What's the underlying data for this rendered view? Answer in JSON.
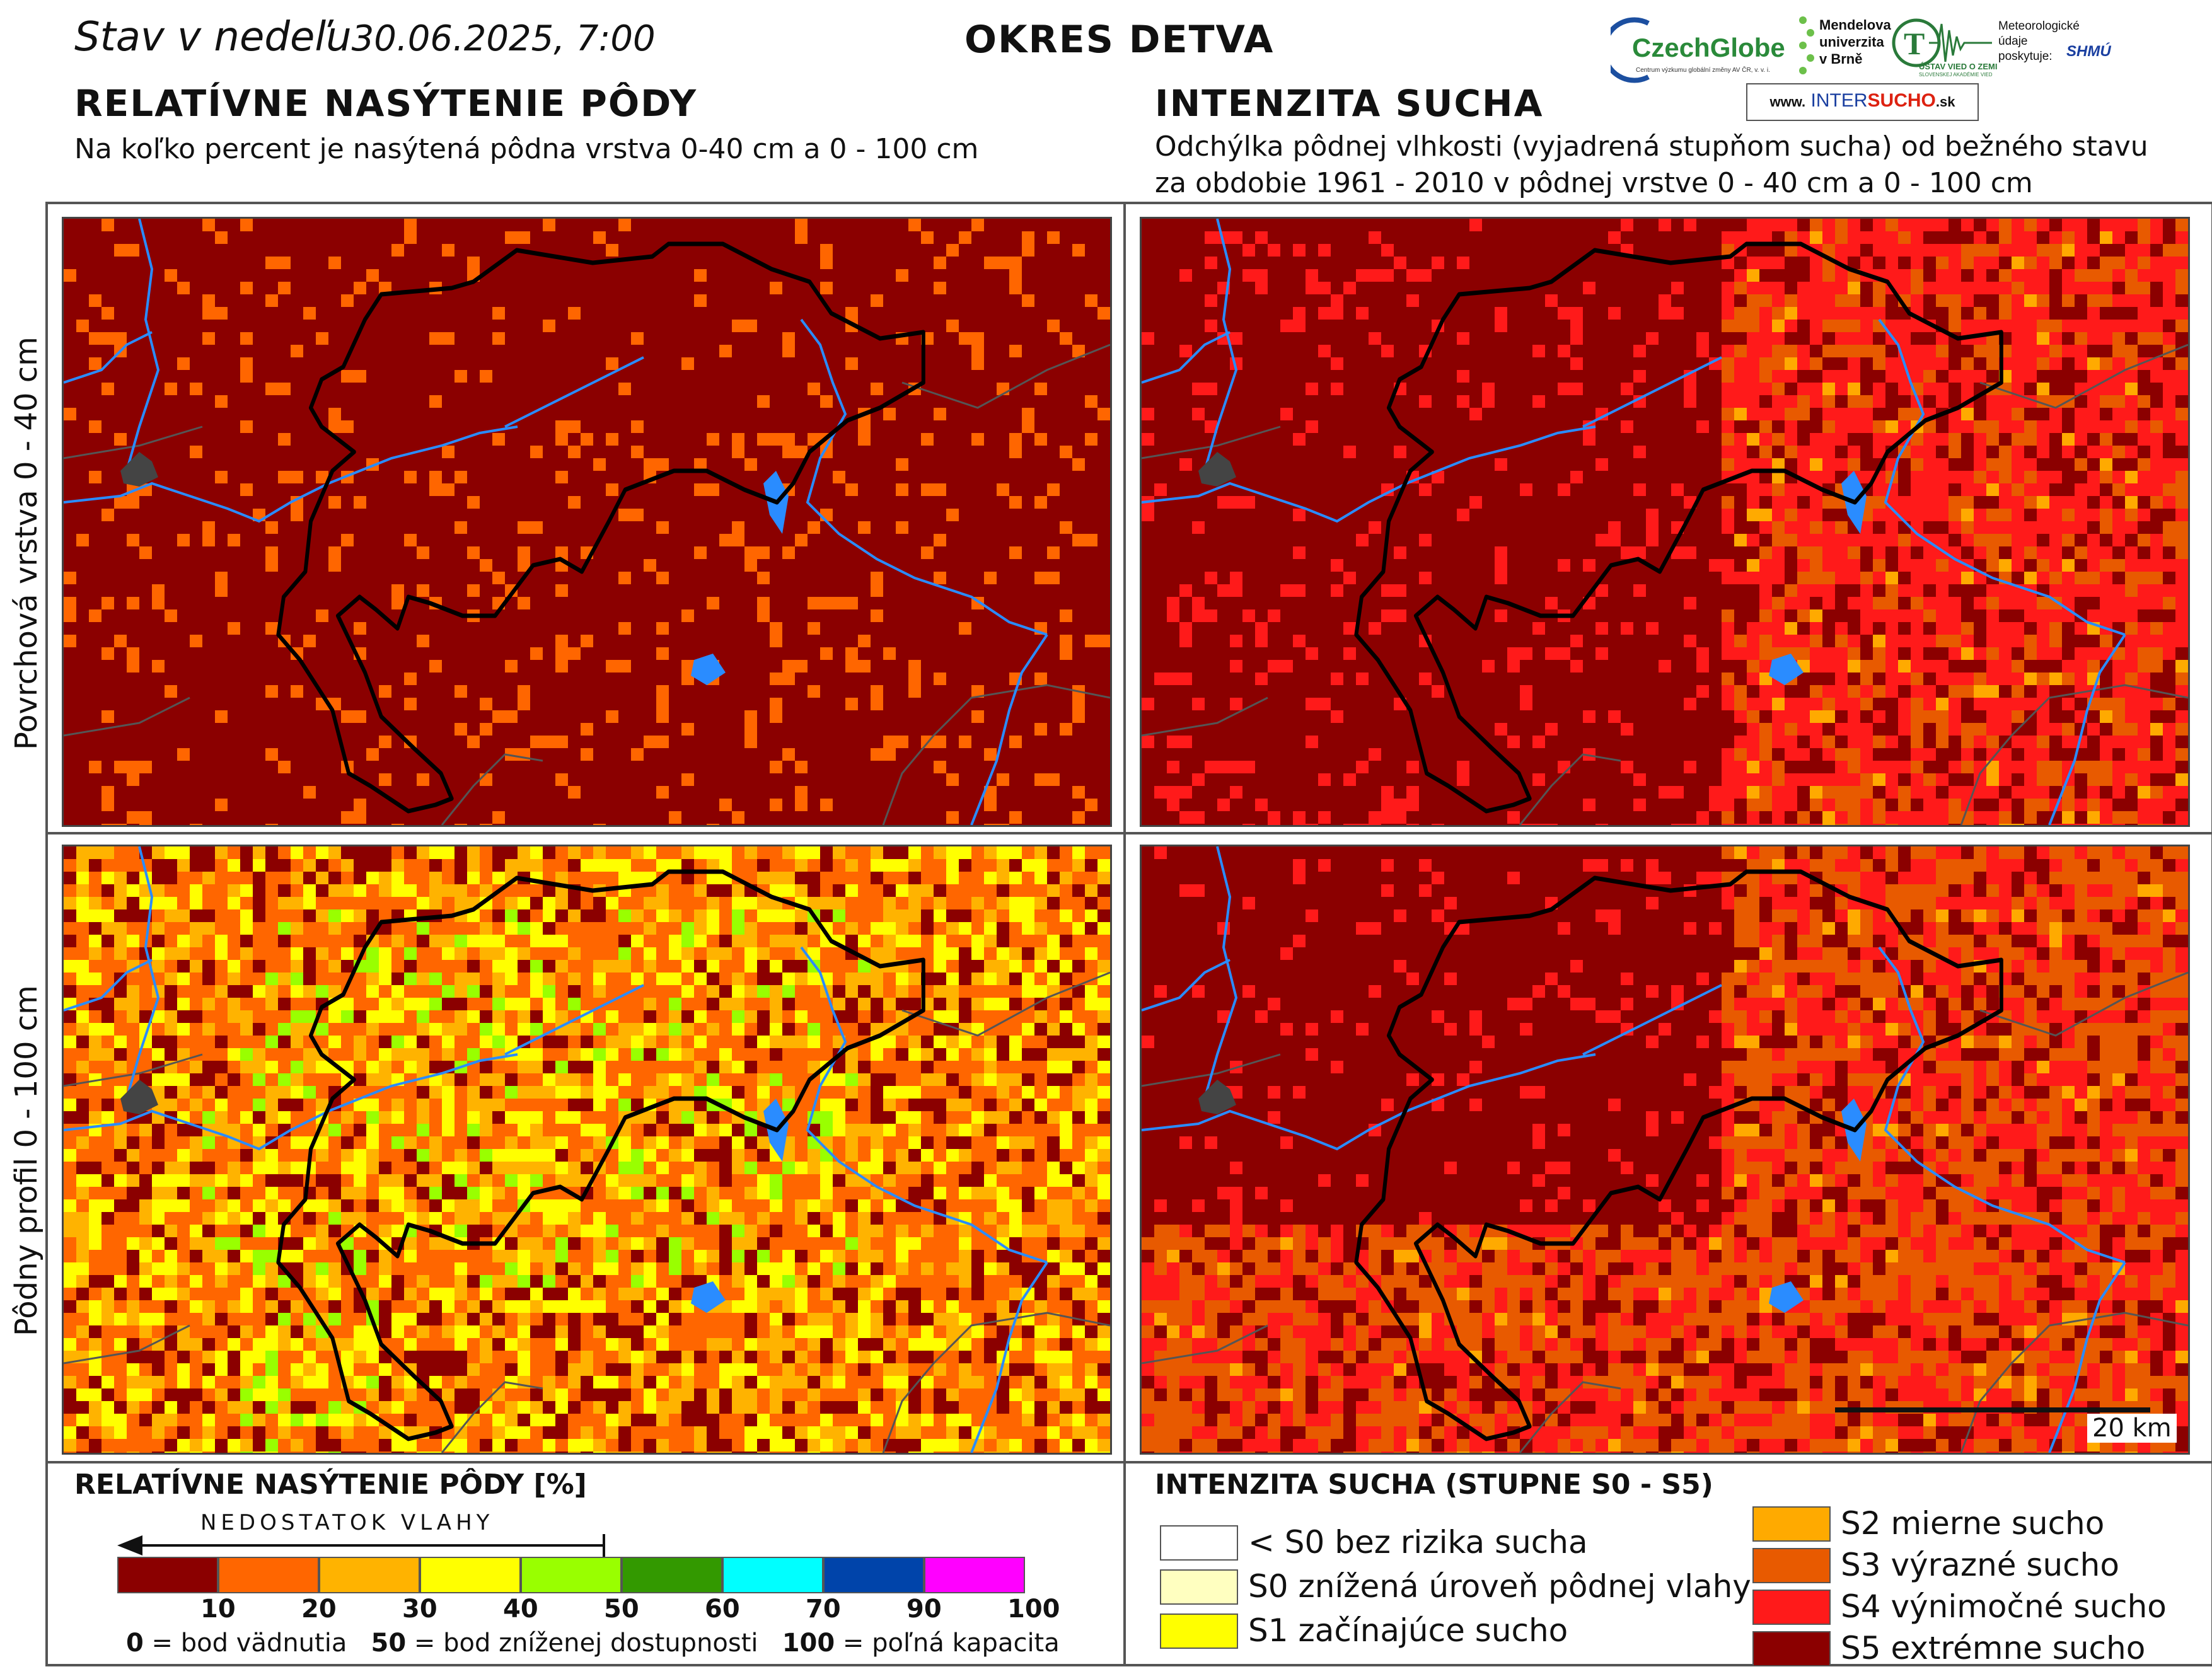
{
  "header": {
    "date_prefix": "Stav v nedeľu",
    "date_value": "30.06.2025, 7:00",
    "district": "OKRES  DETVA"
  },
  "left_section": {
    "title": "RELATÍVNE NASÝTENIE PÔDY",
    "subtitle": "Na koľko percent je nasýtená pôdna vrstva 0-40 cm a 0 - 100 cm"
  },
  "right_section": {
    "title": "INTENZITA SUCHA",
    "subtitle_line1": "Odchýlka pôdnej vlhkosti (vyjadrená stupňom sucha) od bežného stavu",
    "subtitle_line2": "za obdobie 1961 - 2010 v pôdnej vrstve 0 - 40 cm a 0 - 100 cm"
  },
  "logos": {
    "czechglobe": "CzechGlobe",
    "czechglobe_sub": "Centrum výzkumu globální změny AV ČR, v. v. i.",
    "mendelu_line1": "Mendelova",
    "mendelu_line2": "univerzita",
    "mendelu_line3": "v Brně",
    "uvoz_line1": "ÚSTAV VIED O ZEMI",
    "uvoz_line2": "SLOVENSKEJ AKADÉMIE VIED",
    "meteo_line1": "Meteorologické",
    "meteo_line2": "údaje",
    "meteo_line3": "poskytuje:",
    "shmu": "SHMÚ",
    "intersucho_prefix": "www.",
    "intersucho_mid1": "INTER",
    "intersucho_mid2": "SUCHO",
    "intersucho_suffix": ".sk"
  },
  "row_labels": {
    "top": "Povrchová vrstva 0 - 40 cm",
    "bottom": "Pôdny profil 0 - 100 cm"
  },
  "scale_bar": "20 km",
  "legend_saturation": {
    "title": "RELATÍVNE NASÝTENIE PÔDY [%]",
    "arrow_label": "NEDOSTATOK VLAHY",
    "colors": [
      "#8b0000",
      "#ff6600",
      "#ffb300",
      "#ffff00",
      "#99ff00",
      "#339900",
      "#00ffff",
      "#0044aa",
      "#ff00ff"
    ],
    "ticks": [
      "10",
      "20",
      "30",
      "40",
      "50",
      "60",
      "70",
      "90",
      "100"
    ],
    "note_0_num": "0",
    "note_0_text": " = bod vädnutia",
    "note_50_num": "50",
    "note_50_text": " = bod zníženej dostupnosti",
    "note_100_num": "100",
    "note_100_text": " = poľná kapacita"
  },
  "legend_drought": {
    "title": "INTENZITA SUCHA (STUPNE S0 - S5)",
    "items": [
      {
        "label": "< S0 bez rizika sucha",
        "color": "#ffffff"
      },
      {
        "label": "S0 znížená úroveň pôdnej vlahy",
        "color": "#ffffc0"
      },
      {
        "label": "S1 začínajúce sucho",
        "color": "#ffff00"
      },
      {
        "label": "S2 mierne sucho",
        "color": "#ffaa00"
      },
      {
        "label": "S3 výrazné sucho",
        "color": "#e85a00"
      },
      {
        "label": "S4 výnimočné sucho",
        "color": "#ff1a1a"
      },
      {
        "label": "S5 extrémne sucho",
        "color": "#8b0000"
      }
    ]
  }
}
